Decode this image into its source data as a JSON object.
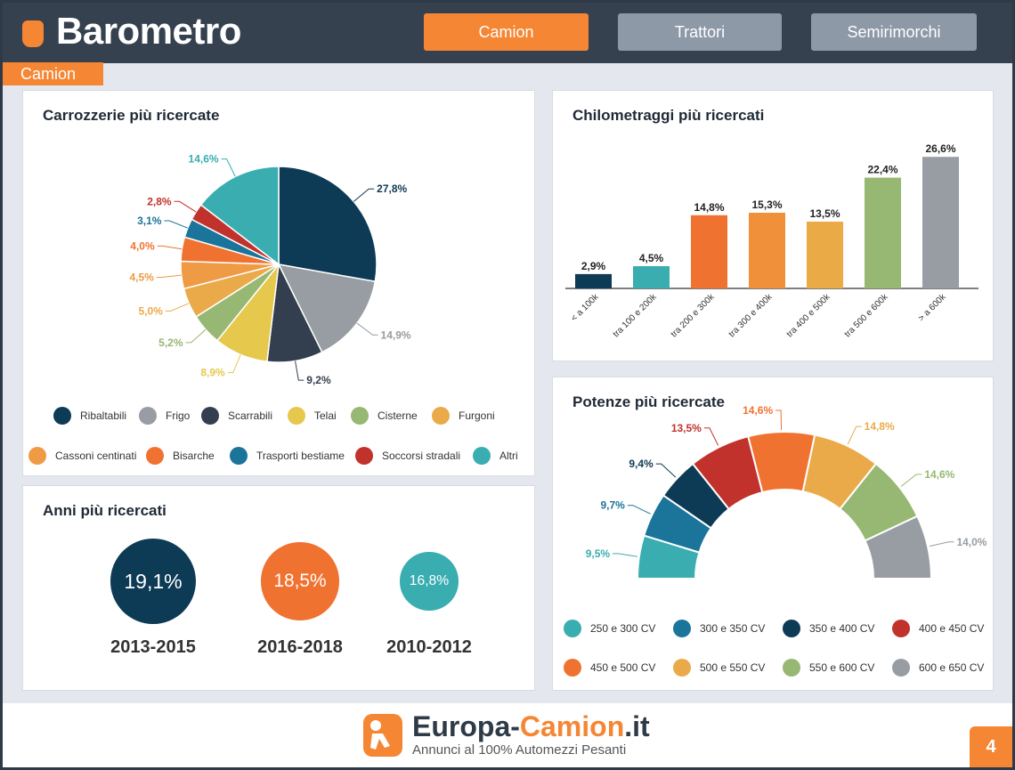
{
  "header": {
    "title": "Barometro",
    "tabs": [
      "Camion",
      "Trattori",
      "Semirimorchi"
    ],
    "active_tab": "Camion",
    "section_label": "Camion"
  },
  "colors": {
    "orange": "#f58634",
    "dark": "#36414f"
  },
  "chart_data": [
    {
      "type": "pie",
      "title": "Carrozzerie più ricercate",
      "categories": [
        "Ribaltabili",
        "Frigo",
        "Scarrabili",
        "Telai",
        "Cisterne",
        "Furgoni",
        "Cassoni centinati",
        "Bisarche",
        "Trasporti bestiame",
        "Soccorsi stradali",
        "Altri"
      ],
      "values": [
        27.8,
        14.9,
        9.2,
        8.9,
        5.2,
        5.0,
        4.5,
        4.0,
        3.1,
        2.8,
        14.6
      ],
      "labels": [
        "27,8%",
        "14,9%",
        "9,2%",
        "8,9%",
        "5,2%",
        "5,0%",
        "4,5%",
        "4,0%",
        "3,1%",
        "2,8%",
        "14,6%"
      ],
      "colors": [
        "#0d3a55",
        "#979da2",
        "#333f4f",
        "#e6c84d",
        "#96b872",
        "#ebaa4a",
        "#ef9a45",
        "#f07230",
        "#1b7499",
        "#c1322d",
        "#3aadb1"
      ],
      "legend": "bottom"
    },
    {
      "type": "bar",
      "title": "Chilometraggi più ricercati",
      "categories": [
        "< a 100k",
        "tra 100 e 200k",
        "tra 200 e 300k",
        "tra 300 e 400k",
        "tra 400 e 500k",
        "tra 500 e 600k",
        "> a 600k"
      ],
      "values": [
        2.9,
        4.5,
        14.8,
        15.3,
        13.5,
        22.4,
        26.6
      ],
      "labels": [
        "2,9%",
        "4,5%",
        "14,8%",
        "15,3%",
        "13,5%",
        "22,4%",
        "26,6%"
      ],
      "colors": [
        "#0d3a55",
        "#3aadb1",
        "#f07230",
        "#f0903a",
        "#eaaa45",
        "#96b872",
        "#979da2"
      ],
      "ylim": [
        0,
        27
      ]
    },
    {
      "type": "bubble",
      "title": "Anni più ricercati",
      "categories": [
        "2013-2015",
        "2016-2018",
        "2010-2012"
      ],
      "values": [
        19.1,
        18.5,
        16.8
      ],
      "labels": [
        "19,1%",
        "18,5%",
        "16,8%"
      ],
      "colors": [
        "#0d3a55",
        "#f07230",
        "#3aadb1"
      ]
    },
    {
      "type": "pie",
      "subtype": "semi-donut",
      "title": "Potenze più ricercate",
      "categories": [
        "250 e 300 CV",
        "300 e 350 CV",
        "350 e 400 CV",
        "400 e 450 CV",
        "450 e 500 CV",
        "500 e 550 CV",
        "550 e 600 CV",
        "600 e 650 CV"
      ],
      "values": [
        9.5,
        9.7,
        9.4,
        13.5,
        14.6,
        14.8,
        14.6,
        14.0
      ],
      "labels": [
        "9,5%",
        "9,7%",
        "9,4%",
        "13,5%",
        "14,6%",
        "14,8%",
        "14,6%",
        "14,0%"
      ],
      "colors": [
        "#3aadb1",
        "#1b7499",
        "#0d3a55",
        "#c1322d",
        "#f07230",
        "#ebaa4a",
        "#96b872",
        "#979da2"
      ],
      "legend": "bottom"
    }
  ],
  "footer": {
    "brand_a": "Europa-",
    "brand_b": "Camion",
    "brand_c": ".it",
    "tagline": "Annunci al 100% Automezzi Pesanti",
    "page": "4"
  }
}
